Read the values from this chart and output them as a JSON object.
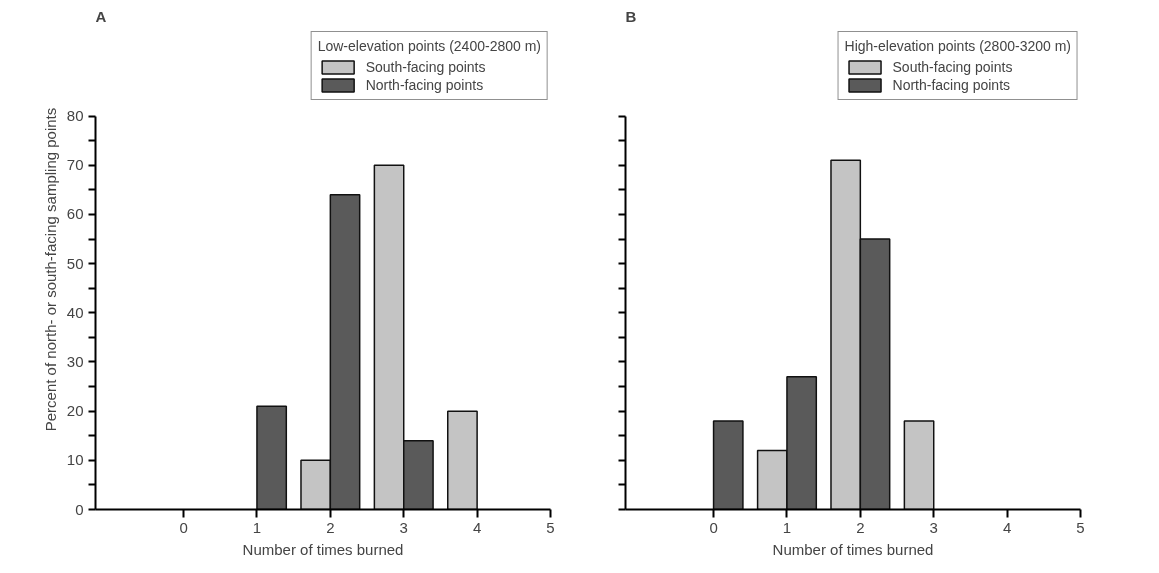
{
  "chart_data": [
    {
      "type": "bar",
      "title": "A",
      "xlabel": "Number of times burned",
      "ylabel": "Percent of north- or south-facing sampling points",
      "legend_title": "Low-elevation points (2400-2800 m)",
      "legend": "top",
      "grid": false,
      "series": [
        {
          "name": "South-facing points",
          "color": "#c4c4c4",
          "x": [
            2,
            3,
            4
          ],
          "values": [
            10,
            70,
            20
          ]
        },
        {
          "name": "North-facing points",
          "color": "#5a5a5a",
          "x": [
            1,
            2,
            3
          ],
          "values": [
            21,
            64,
            14
          ]
        }
      ],
      "xlim": [
        -1.2,
        5
      ],
      "xticks": [
        0,
        1,
        2,
        3,
        4,
        5
      ],
      "ylim": [
        0,
        80
      ],
      "yticks": [
        0,
        {
          "value": 5,
          "label": null
        },
        10,
        {
          "value": 15,
          "label": null
        },
        20,
        {
          "value": 25,
          "label": null
        },
        30,
        {
          "value": 35,
          "label": null
        },
        40,
        {
          "value": 45,
          "label": null
        },
        50,
        {
          "value": 55,
          "label": null
        },
        60,
        {
          "value": 65,
          "label": null
        },
        70,
        {
          "value": 75,
          "label": null
        },
        80
      ]
    },
    {
      "type": "bar",
      "title": "B",
      "xlabel": "Number of times burned",
      "legend_title": "High-elevation points (2800-3200 m)",
      "legend": "top",
      "grid": false,
      "tick_labels": "x",
      "series": [
        {
          "name": "South-facing points",
          "color": "#c4c4c4",
          "x": [
            1,
            2,
            3
          ],
          "values": [
            12,
            71,
            18
          ]
        },
        {
          "name": "North-facing points",
          "color": "#5a5a5a",
          "x": [
            0,
            1,
            2
          ],
          "values": [
            18,
            27,
            55
          ]
        }
      ],
      "xlim": [
        -1.2,
        5
      ],
      "xticks": [
        0,
        1,
        2,
        3,
        4,
        5
      ],
      "ylim": [
        0,
        80
      ],
      "yticks": [
        0,
        {
          "value": 5,
          "label": null
        },
        10,
        {
          "value": 15,
          "label": null
        },
        20,
        {
          "value": 25,
          "label": null
        },
        30,
        {
          "value": 35,
          "label": null
        },
        40,
        {
          "value": 45,
          "label": null
        },
        50,
        {
          "value": 55,
          "label": null
        },
        60,
        {
          "value": 65,
          "label": null
        },
        70,
        {
          "value": 75,
          "label": null
        },
        80
      ]
    }
  ]
}
